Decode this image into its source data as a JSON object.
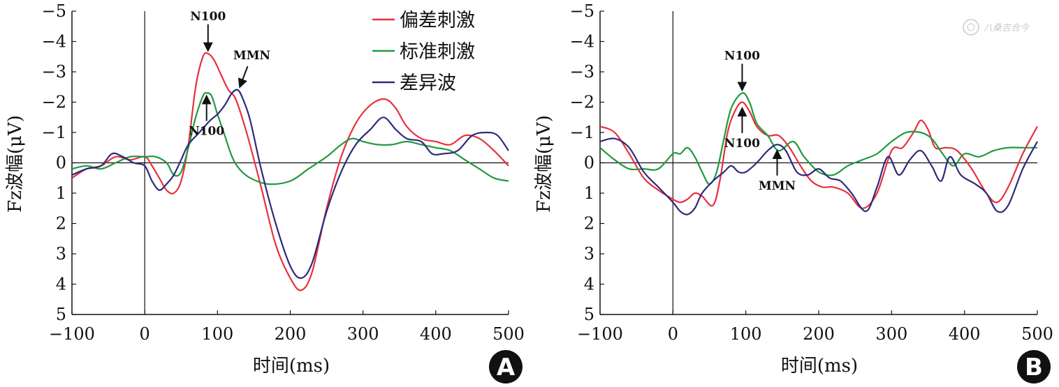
{
  "colors": {
    "deviant": "#e8303e",
    "standard": "#1f9a3e",
    "difference": "#2e2a7a",
    "axis": "#111111"
  },
  "watermark": "八桑吉合今",
  "chart_data": [
    {
      "type": "line",
      "panel_label": "A",
      "xlabel": "时间(ms)",
      "ylabel": "Fz波幅(μV)",
      "xlim": [
        -100,
        500
      ],
      "ylim": [
        -5,
        5
      ],
      "y_inverted": true,
      "x_ticks": [
        "−100",
        "0",
        "100",
        "200",
        "300",
        "400",
        "500"
      ],
      "x_tick_values": [
        -100,
        0,
        100,
        200,
        300,
        400,
        500
      ],
      "y_ticks": [
        "−5",
        "−4",
        "−3",
        "−2",
        "−1",
        "0",
        "1",
        "2",
        "3",
        "4",
        "5"
      ],
      "y_tick_values": [
        -5,
        -4,
        -3,
        -2,
        -1,
        0,
        1,
        2,
        3,
        4,
        5
      ],
      "legend": [
        "偏差刺激",
        "标准刺激",
        "差异波"
      ],
      "annotations": [
        {
          "text": "N100",
          "x": 87,
          "y": -3.6,
          "dir": "down"
        },
        {
          "text": "N100",
          "x": 85,
          "y": -2.3,
          "dir": "up"
        },
        {
          "text": "MMN",
          "x": 128,
          "y": -2.4,
          "dir": "down-left"
        }
      ],
      "series": [
        {
          "name": "偏差刺激",
          "color_key": "deviant",
          "x": [
            -100,
            -80,
            -60,
            -40,
            -20,
            0,
            10,
            20,
            30,
            40,
            50,
            60,
            70,
            80,
            87,
            95,
            105,
            115,
            125,
            140,
            160,
            180,
            200,
            215,
            230,
            250,
            270,
            290,
            310,
            330,
            345,
            360,
            380,
            400,
            420,
            440,
            460,
            480,
            500
          ],
          "y": [
            0.5,
            0.2,
            0.1,
            -0.2,
            -0.1,
            -0.2,
            0.1,
            0.5,
            0.9,
            1.0,
            0.6,
            -0.6,
            -2.5,
            -3.5,
            -3.6,
            -3.4,
            -2.9,
            -2.4,
            -2.1,
            -1.0,
            0.8,
            2.7,
            3.8,
            4.2,
            3.6,
            1.5,
            -0.2,
            -1.3,
            -1.9,
            -2.1,
            -1.8,
            -1.2,
            -0.8,
            -0.7,
            -0.6,
            -0.9,
            -0.8,
            -0.4,
            0.1
          ]
        },
        {
          "name": "标准刺激",
          "color_key": "standard",
          "x": [
            -100,
            -80,
            -60,
            -40,
            -20,
            0,
            15,
            30,
            40,
            50,
            60,
            70,
            80,
            85,
            92,
            100,
            110,
            120,
            130,
            145,
            170,
            200,
            225,
            250,
            270,
            285,
            300,
            320,
            340,
            360,
            380,
            400,
            420,
            440,
            460,
            480,
            500
          ],
          "y": [
            0.2,
            0.1,
            0.2,
            0.0,
            -0.2,
            -0.2,
            -0.2,
            0.0,
            0.4,
            0.3,
            -0.5,
            -1.5,
            -2.2,
            -2.3,
            -2.2,
            -1.6,
            -0.9,
            -0.2,
            0.2,
            0.5,
            0.7,
            0.6,
            0.2,
            -0.2,
            -0.6,
            -0.8,
            -0.7,
            -0.6,
            -0.6,
            -0.7,
            -0.6,
            -0.5,
            -0.4,
            -0.1,
            0.2,
            0.5,
            0.6
          ]
        },
        {
          "name": "差异波",
          "color_key": "difference",
          "x": [
            -100,
            -80,
            -60,
            -45,
            -30,
            -15,
            0,
            10,
            20,
            30,
            40,
            50,
            60,
            75,
            90,
            100,
            110,
            120,
            128,
            135,
            145,
            160,
            180,
            200,
            215,
            230,
            250,
            270,
            290,
            310,
            328,
            345,
            360,
            380,
            395,
            410,
            430,
            450,
            470,
            485,
            500
          ],
          "y": [
            0.4,
            0.2,
            0.1,
            -0.3,
            -0.2,
            0.0,
            0.1,
            0.6,
            0.9,
            0.7,
            0.4,
            -0.1,
            -0.6,
            -1.0,
            -1.4,
            -1.6,
            -1.9,
            -2.3,
            -2.4,
            -2.1,
            -1.4,
            0.2,
            2.0,
            3.4,
            3.8,
            3.3,
            1.6,
            0.3,
            -0.6,
            -1.1,
            -1.5,
            -1.1,
            -0.8,
            -0.7,
            -0.3,
            -0.3,
            -0.4,
            -0.9,
            -1.0,
            -0.9,
            -0.4
          ]
        }
      ]
    },
    {
      "type": "line",
      "panel_label": "B",
      "xlabel": "时间(ms)",
      "ylabel": "Fz波幅(μV)",
      "xlim": [
        -100,
        500
      ],
      "ylim": [
        -5,
        5
      ],
      "y_inverted": true,
      "x_ticks": [
        "−100",
        "0",
        "100",
        "200",
        "300",
        "400",
        "500"
      ],
      "x_tick_values": [
        -100,
        0,
        100,
        200,
        300,
        400,
        500
      ],
      "y_ticks": [
        "−5",
        "−4",
        "−3",
        "−2",
        "−1",
        "0",
        "1",
        "2",
        "3",
        "4",
        "5"
      ],
      "y_tick_values": [
        -5,
        -4,
        -3,
        -2,
        -1,
        0,
        1,
        2,
        3,
        4,
        5
      ],
      "annotations": [
        {
          "text": "N100",
          "x": 95,
          "y": -2.3,
          "dir": "down"
        },
        {
          "text": "N100",
          "x": 95,
          "y": -1.9,
          "dir": "up"
        },
        {
          "text": "MMN",
          "x": 143,
          "y": -0.5,
          "dir": "up"
        }
      ],
      "series": [
        {
          "name": "偏差刺激",
          "color_key": "deviant",
          "x": [
            -100,
            -80,
            -60,
            -40,
            -20,
            0,
            10,
            20,
            30,
            40,
            55,
            65,
            75,
            85,
            95,
            105,
            115,
            130,
            145,
            160,
            175,
            190,
            205,
            220,
            240,
            260,
            280,
            300,
            315,
            330,
            340,
            350,
            360,
            375,
            390,
            410,
            430,
            445,
            460,
            480,
            500
          ],
          "y": [
            -1.2,
            -1.0,
            -0.3,
            0.5,
            0.9,
            1.2,
            1.3,
            1.2,
            1.0,
            1.1,
            1.4,
            0.5,
            -1.0,
            -1.7,
            -2.0,
            -1.7,
            -1.2,
            -0.9,
            -0.9,
            -0.5,
            0.1,
            0.6,
            0.8,
            0.8,
            1.0,
            1.5,
            1.0,
            -0.4,
            -0.5,
            -1.0,
            -1.4,
            -1.1,
            -0.5,
            -0.5,
            -0.4,
            0.2,
            1.0,
            1.3,
            0.8,
            -0.3,
            -1.2
          ]
        },
        {
          "name": "标准刺激",
          "color_key": "standard",
          "x": [
            -100,
            -80,
            -60,
            -40,
            -20,
            0,
            10,
            20,
            30,
            40,
            50,
            60,
            70,
            80,
            95,
            105,
            115,
            130,
            145,
            165,
            180,
            200,
            220,
            240,
            260,
            280,
            300,
            320,
            340,
            355,
            370,
            385,
            400,
            420,
            440,
            460,
            480,
            500
          ],
          "y": [
            -0.5,
            -0.1,
            0.2,
            0.2,
            0.2,
            -0.3,
            -0.3,
            -0.5,
            -0.2,
            0.3,
            0.7,
            0.3,
            -0.8,
            -1.8,
            -2.3,
            -2.0,
            -1.3,
            -0.9,
            -0.4,
            -0.7,
            -0.2,
            0.3,
            0.4,
            0.1,
            -0.1,
            -0.3,
            -0.7,
            -1.0,
            -1.0,
            -0.8,
            -0.3,
            0.1,
            -0.3,
            -0.2,
            -0.4,
            -0.5,
            -0.5,
            -0.5
          ]
        },
        {
          "name": "差异波",
          "color_key": "difference",
          "x": [
            -100,
            -80,
            -60,
            -40,
            -20,
            0,
            10,
            20,
            30,
            40,
            55,
            70,
            80,
            90,
            100,
            115,
            130,
            143,
            155,
            170,
            185,
            200,
            215,
            230,
            245,
            265,
            280,
            295,
            310,
            325,
            340,
            355,
            368,
            380,
            395,
            415,
            430,
            445,
            460,
            480,
            500
          ],
          "y": [
            -0.7,
            -0.8,
            -0.5,
            0.3,
            0.8,
            1.3,
            1.6,
            1.7,
            1.5,
            1.0,
            0.6,
            0.3,
            0.1,
            0.3,
            0.3,
            0.0,
            -0.4,
            -0.6,
            -0.4,
            0.3,
            0.4,
            0.2,
            0.5,
            0.6,
            1.0,
            1.6,
            0.8,
            -0.2,
            0.4,
            -0.1,
            -0.4,
            0.1,
            0.6,
            -0.2,
            0.4,
            0.7,
            1.0,
            1.6,
            1.4,
            0.2,
            -0.7
          ]
        }
      ]
    }
  ]
}
